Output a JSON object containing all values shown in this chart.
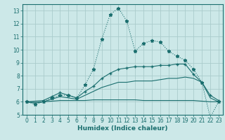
{
  "title": "",
  "xlabel": "Humidex (Indice chaleur)",
  "bg_color": "#cce8e8",
  "grid_color": "#aacccc",
  "line_color": "#1a6e6e",
  "xlim": [
    -0.5,
    23.5
  ],
  "ylim": [
    5,
    13.5
  ],
  "xticks": [
    0,
    1,
    2,
    3,
    4,
    5,
    6,
    7,
    8,
    9,
    10,
    11,
    12,
    13,
    14,
    15,
    16,
    17,
    18,
    19,
    20,
    21,
    22,
    23
  ],
  "yticks": [
    5,
    6,
    7,
    8,
    9,
    10,
    11,
    12,
    13
  ],
  "line1_x": [
    0,
    1,
    2,
    3,
    4,
    5,
    6,
    7,
    8,
    9,
    10,
    11,
    12,
    13,
    14,
    15,
    16,
    17,
    18,
    19,
    20,
    21,
    22,
    23
  ],
  "line1_y": [
    6.0,
    5.8,
    6.0,
    6.3,
    6.5,
    6.5,
    6.3,
    7.3,
    8.5,
    10.8,
    12.7,
    13.2,
    12.2,
    9.9,
    10.5,
    10.7,
    10.6,
    9.9,
    9.5,
    9.2,
    8.5,
    7.5,
    4.8,
    6.0
  ],
  "line2_x": [
    0,
    2,
    3,
    4,
    5,
    6,
    7,
    8,
    9,
    10,
    11,
    12,
    13,
    14,
    15,
    16,
    17,
    18,
    19,
    20,
    21,
    22,
    23
  ],
  "line2_y": [
    6.0,
    6.1,
    6.4,
    6.7,
    6.5,
    6.3,
    6.8,
    7.2,
    7.8,
    8.2,
    8.5,
    8.6,
    8.7,
    8.7,
    8.7,
    8.8,
    8.8,
    8.9,
    8.9,
    8.1,
    7.5,
    6.5,
    6.1
  ],
  "line3_x": [
    0,
    1,
    2,
    3,
    4,
    5,
    6,
    7,
    8,
    9,
    10,
    11,
    12,
    13,
    14,
    15,
    16,
    17,
    18,
    19,
    20,
    21,
    22,
    23
  ],
  "line3_y": [
    6.0,
    5.9,
    6.0,
    6.2,
    6.4,
    6.3,
    6.2,
    6.5,
    6.8,
    7.1,
    7.3,
    7.5,
    7.5,
    7.6,
    7.6,
    7.6,
    7.7,
    7.8,
    7.8,
    7.9,
    7.8,
    7.5,
    6.3,
    6.0
  ],
  "line4_x": [
    0,
    1,
    2,
    3,
    4,
    5,
    6,
    7,
    8,
    9,
    10,
    11,
    12,
    13,
    14,
    15,
    16,
    17,
    18,
    19,
    20,
    21,
    22,
    23
  ],
  "line4_y": [
    6.0,
    5.95,
    6.0,
    6.05,
    6.1,
    6.1,
    6.1,
    6.1,
    6.15,
    6.15,
    6.15,
    6.15,
    6.15,
    6.15,
    6.1,
    6.1,
    6.1,
    6.1,
    6.1,
    6.1,
    6.1,
    6.05,
    6.0,
    6.0
  ]
}
